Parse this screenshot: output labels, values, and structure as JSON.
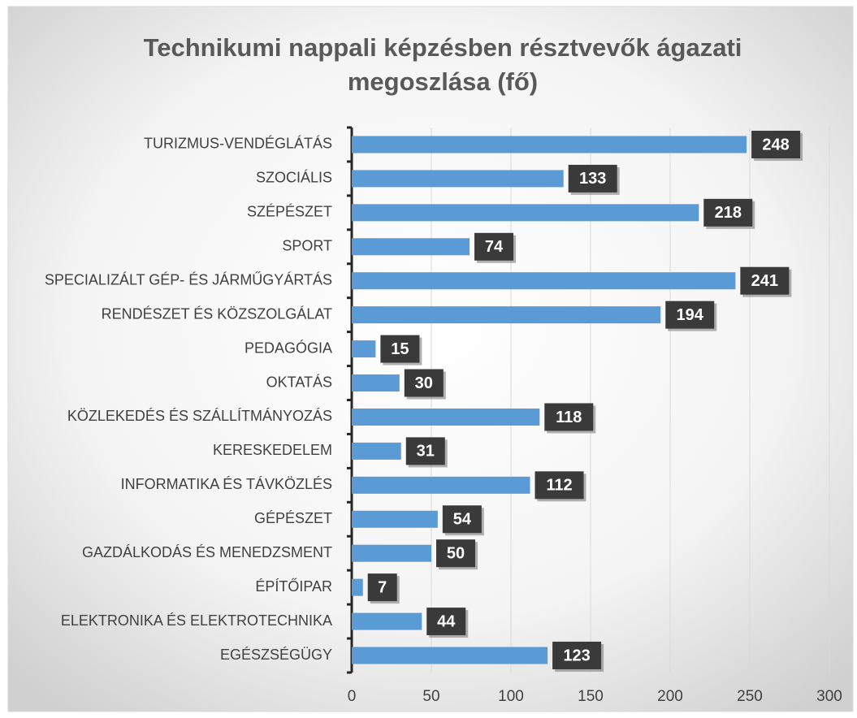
{
  "chart_data": {
    "type": "bar",
    "orientation": "horizontal",
    "title": "Technikumi nappali képzésben résztvevők ágazati megoszlása (fő)",
    "categories": [
      "TURIZMUS-VENDÉGLÁTÁS",
      "SZOCIÁLIS",
      "SZÉPÉSZET",
      "SPORT",
      "SPECIALIZÁLT GÉP- ÉS JÁRMŰGYÁRTÁS",
      "RENDÉSZET ÉS KÖZSZOLGÁLAT",
      "PEDAGÓGIA",
      "OKTATÁS",
      "KÖZLEKEDÉS ÉS SZÁLLÍTMÁNYOZÁS",
      "KERESKEDELEM",
      "INFORMATIKA ÉS TÁVKÖZLÉS",
      "GÉPÉSZET",
      "GAZDÁLKODÁS ÉS MENEDZSMENT",
      "ÉPÍTŐIPAR",
      "ELEKTRONIKA ÉS ELEKTROTECHNIKA",
      "EGÉSZSÉGÜGY"
    ],
    "values": [
      248,
      133,
      218,
      74,
      241,
      194,
      15,
      30,
      118,
      31,
      112,
      54,
      50,
      7,
      44,
      123
    ],
    "color": "#5b9bd5",
    "xlim": [
      0,
      300
    ],
    "xticks": [
      0,
      50,
      100,
      150,
      200,
      250,
      300
    ],
    "grid": true
  }
}
